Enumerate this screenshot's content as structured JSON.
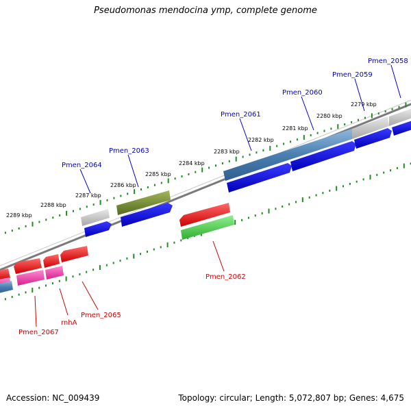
{
  "title": "Pseudomonas mendocina ymp, complete genome",
  "footer": {
    "accession": "Accession: NC_009439",
    "topology": "Topology: circular; Length: 5,072,807 bp; Genes: 4,675"
  },
  "colors": {
    "forward_label": "#0000cc",
    "reverse_label": "#cc0000",
    "tick": "#228b22",
    "backbone": "#808080"
  },
  "kbp_labels": [
    "2279 kbp",
    "2280 kbp",
    "2281 kbp",
    "2282 kbp",
    "2283 kbp",
    "2284 kbp",
    "2285 kbp",
    "2286 kbp",
    "2287 kbp",
    "2288 kbp",
    "2289 kbp"
  ],
  "gene_labels": [
    {
      "name": "Pmen_2058",
      "strand": "forward"
    },
    {
      "name": "Pmen_2059",
      "strand": "forward"
    },
    {
      "name": "Pmen_2060",
      "strand": "forward"
    },
    {
      "name": "Pmen_2061",
      "strand": "forward"
    },
    {
      "name": "Pmen_2063",
      "strand": "forward"
    },
    {
      "name": "Pmen_2064",
      "strand": "forward"
    },
    {
      "name": "Pmen_2062",
      "strand": "reverse"
    },
    {
      "name": "Pmen_2065",
      "strand": "reverse"
    },
    {
      "name": "rnhA",
      "strand": "reverse"
    },
    {
      "name": "Pmen_2067",
      "strand": "reverse"
    }
  ]
}
